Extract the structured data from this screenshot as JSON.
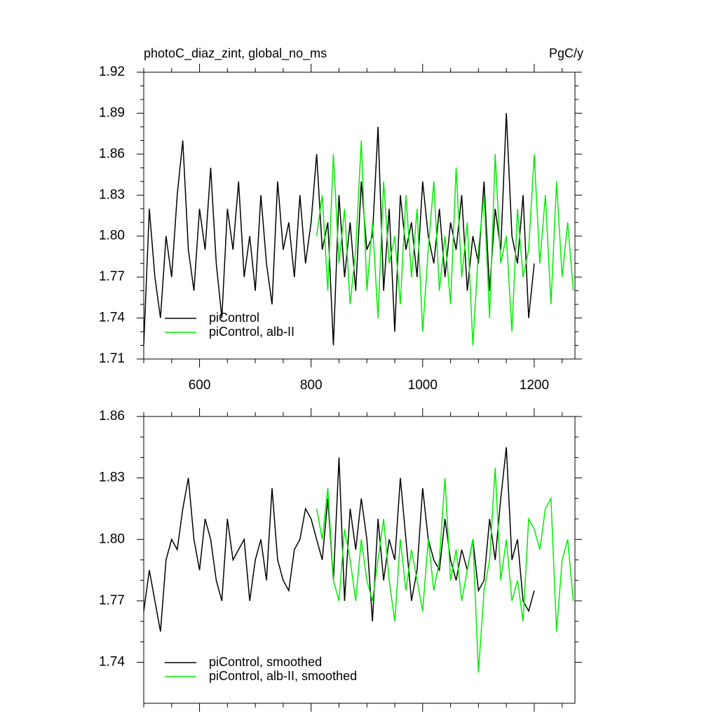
{
  "chart_data": [
    {
      "type": "line",
      "title": "photoC_diaz_zint, global_no_ms",
      "units": "PgC/y",
      "xlim": [
        500,
        1273
      ],
      "xticks": [
        600,
        800,
        1000,
        1200
      ],
      "show_xtick_labels": true,
      "ylim": [
        1.71,
        1.92
      ],
      "yticks": [
        1.71,
        1.74,
        1.77,
        {
          "value": 1.8,
          "label": "1.80"
        },
        1.83,
        1.86,
        1.89,
        1.92
      ],
      "legend": "lower left",
      "series": [
        {
          "name": "piControl",
          "color": "#000000",
          "x": [
            500,
            510,
            520,
            530,
            540,
            550,
            560,
            570,
            580,
            590,
            600,
            610,
            620,
            630,
            640,
            650,
            660,
            670,
            680,
            690,
            700,
            710,
            720,
            730,
            740,
            750,
            760,
            770,
            780,
            790,
            800,
            810,
            820,
            830,
            840,
            850,
            860,
            870,
            880,
            890,
            900,
            910,
            920,
            930,
            940,
            950,
            960,
            970,
            980,
            990,
            1000,
            1010,
            1020,
            1030,
            1040,
            1050,
            1060,
            1070,
            1080,
            1090,
            1100,
            1110,
            1120,
            1130,
            1140,
            1150,
            1160,
            1170,
            1180,
            1190,
            1200
          ],
          "values": [
            1.72,
            1.82,
            1.77,
            1.74,
            1.8,
            1.77,
            1.83,
            1.87,
            1.79,
            1.76,
            1.82,
            1.79,
            1.85,
            1.78,
            1.74,
            1.82,
            1.79,
            1.84,
            1.77,
            1.8,
            1.76,
            1.83,
            1.78,
            1.75,
            1.84,
            1.79,
            1.81,
            1.77,
            1.83,
            1.78,
            1.81,
            1.86,
            1.79,
            1.81,
            1.72,
            1.83,
            1.77,
            1.81,
            1.76,
            1.84,
            1.79,
            1.8,
            1.88,
            1.76,
            1.82,
            1.73,
            1.83,
            1.79,
            1.81,
            1.77,
            1.84,
            1.8,
            1.78,
            1.82,
            1.77,
            1.81,
            1.79,
            1.83,
            1.76,
            1.8,
            1.78,
            1.84,
            1.76,
            1.82,
            1.79,
            1.89,
            1.8,
            1.78,
            1.83,
            1.74,
            1.78
          ]
        },
        {
          "name": "piControl, alb-II",
          "color": "#00ee00",
          "x": [
            810,
            820,
            830,
            840,
            850,
            860,
            870,
            880,
            890,
            900,
            910,
            920,
            930,
            940,
            950,
            960,
            970,
            980,
            990,
            1000,
            1010,
            1020,
            1030,
            1040,
            1050,
            1060,
            1070,
            1080,
            1090,
            1100,
            1110,
            1120,
            1130,
            1140,
            1150,
            1160,
            1170,
            1180,
            1190,
            1200,
            1210,
            1220,
            1230,
            1240,
            1250,
            1260,
            1270
          ],
          "values": [
            1.8,
            1.83,
            1.76,
            1.86,
            1.78,
            1.82,
            1.75,
            1.79,
            1.87,
            1.76,
            1.81,
            1.74,
            1.84,
            1.78,
            1.8,
            1.75,
            1.83,
            1.77,
            1.82,
            1.73,
            1.79,
            1.84,
            1.76,
            1.8,
            1.75,
            1.85,
            1.77,
            1.81,
            1.72,
            1.79,
            1.83,
            1.74,
            1.86,
            1.78,
            1.8,
            1.73,
            1.82,
            1.77,
            1.79,
            1.86,
            1.78,
            1.83,
            1.75,
            1.84,
            1.77,
            1.81,
            1.76
          ]
        }
      ]
    },
    {
      "type": "line",
      "xlim": [
        500,
        1273
      ],
      "xticks": [
        600,
        800,
        1000,
        1200
      ],
      "show_xtick_labels": false,
      "ylim": [
        1.72,
        1.86
      ],
      "yticks": [
        1.74,
        1.77,
        {
          "value": 1.8,
          "label": "1.80"
        },
        1.83,
        1.86
      ],
      "legend": "lower left",
      "series": [
        {
          "name": "piControl, smoothed",
          "color": "#000000",
          "x": [
            500,
            510,
            520,
            530,
            540,
            550,
            560,
            570,
            580,
            590,
            600,
            610,
            620,
            630,
            640,
            650,
            660,
            670,
            680,
            690,
            700,
            710,
            720,
            730,
            740,
            750,
            760,
            770,
            780,
            790,
            800,
            810,
            820,
            830,
            840,
            850,
            860,
            870,
            880,
            890,
            900,
            910,
            920,
            930,
            940,
            950,
            960,
            970,
            980,
            990,
            1000,
            1010,
            1020,
            1030,
            1040,
            1050,
            1060,
            1070,
            1080,
            1090,
            1100,
            1110,
            1120,
            1130,
            1140,
            1150,
            1160,
            1170,
            1180,
            1190,
            1200
          ],
          "values": [
            1.765,
            1.785,
            1.77,
            1.755,
            1.79,
            1.8,
            1.795,
            1.815,
            1.83,
            1.8,
            1.785,
            1.81,
            1.8,
            1.78,
            1.77,
            1.81,
            1.79,
            1.795,
            1.8,
            1.77,
            1.79,
            1.8,
            1.78,
            1.825,
            1.79,
            1.78,
            1.775,
            1.795,
            1.8,
            1.815,
            1.81,
            1.8,
            1.79,
            1.82,
            1.78,
            1.84,
            1.77,
            1.815,
            1.795,
            1.82,
            1.8,
            1.76,
            1.81,
            1.78,
            1.8,
            1.79,
            1.83,
            1.8,
            1.77,
            1.785,
            1.825,
            1.8,
            1.79,
            1.785,
            1.81,
            1.79,
            1.78,
            1.795,
            1.785,
            1.8,
            1.775,
            1.78,
            1.81,
            1.79,
            1.82,
            1.845,
            1.79,
            1.8,
            1.77,
            1.765,
            1.775
          ]
        },
        {
          "name": "piControl, alb-II, smoothed",
          "color": "#00ee00",
          "x": [
            810,
            820,
            830,
            840,
            850,
            860,
            870,
            880,
            890,
            900,
            910,
            920,
            930,
            940,
            950,
            960,
            970,
            980,
            990,
            1000,
            1010,
            1020,
            1030,
            1040,
            1050,
            1060,
            1070,
            1080,
            1090,
            1100,
            1110,
            1120,
            1130,
            1140,
            1150,
            1160,
            1170,
            1180,
            1190,
            1200,
            1210,
            1220,
            1230,
            1240,
            1250,
            1260,
            1270
          ],
          "values": [
            1.815,
            1.8,
            1.825,
            1.78,
            1.77,
            1.805,
            1.79,
            1.77,
            1.8,
            1.78,
            1.77,
            1.79,
            1.81,
            1.78,
            1.76,
            1.8,
            1.775,
            1.795,
            1.78,
            1.765,
            1.8,
            1.775,
            1.79,
            1.83,
            1.78,
            1.795,
            1.77,
            1.785,
            1.8,
            1.735,
            1.775,
            1.79,
            1.835,
            1.78,
            1.8,
            1.77,
            1.78,
            1.76,
            1.81,
            1.805,
            1.795,
            1.815,
            1.82,
            1.755,
            1.79,
            1.8,
            1.77
          ]
        }
      ]
    }
  ]
}
